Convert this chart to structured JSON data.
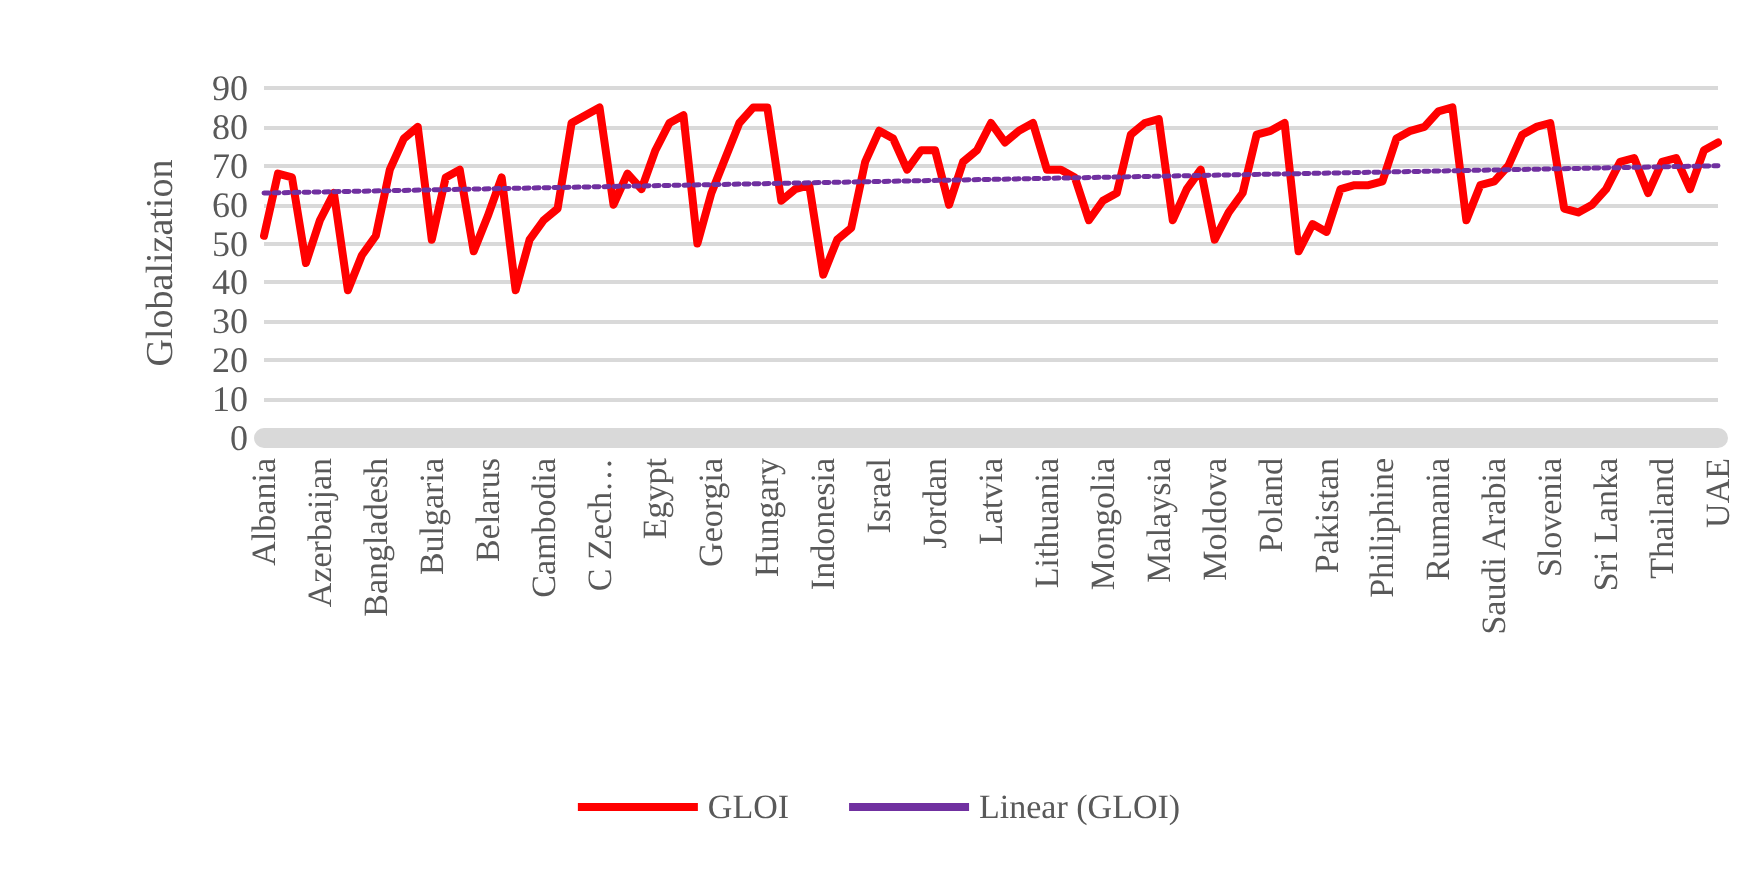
{
  "chart_data": {
    "type": "line",
    "ylabel": "Globalization",
    "categories": [
      "Albania",
      null,
      null,
      null,
      "Azerbaijan",
      null,
      null,
      null,
      "Bangladesh",
      null,
      null,
      null,
      "Bulgaria",
      null,
      null,
      null,
      "Belarus",
      null,
      null,
      null,
      "Cambodia",
      null,
      null,
      null,
      "C Zech…",
      null,
      null,
      null,
      "Egypt",
      null,
      null,
      null,
      "Georgia",
      null,
      null,
      null,
      "Hungary",
      null,
      null,
      null,
      "Indonesia",
      null,
      null,
      null,
      "Israel",
      null,
      null,
      null,
      "Jordan",
      null,
      null,
      null,
      "Latvia",
      null,
      null,
      null,
      "Lithuania",
      null,
      null,
      null,
      "Mongolia",
      null,
      null,
      null,
      "Malaysia",
      null,
      null,
      null,
      "Moldova",
      null,
      null,
      null,
      "Poland",
      null,
      null,
      null,
      "Pakistan",
      null,
      null,
      null,
      "Philiphine",
      null,
      null,
      null,
      "Rumania",
      null,
      null,
      null,
      "Saudi Arabia",
      null,
      null,
      null,
      "Slovenia",
      null,
      null,
      null,
      "Sri Lanka",
      null,
      null,
      null,
      "Thailand",
      null,
      null,
      null,
      "UAE"
    ],
    "series": [
      {
        "name": "GLOI",
        "color": "#ff0000",
        "values": [
          52,
          68,
          67,
          45,
          56,
          63,
          38,
          47,
          52,
          69,
          77,
          80,
          51,
          67,
          69,
          48,
          57,
          67,
          38,
          51,
          56,
          59,
          81,
          83,
          85,
          60,
          68,
          64,
          74,
          81,
          83,
          50,
          63,
          72,
          81,
          85,
          85,
          61,
          64,
          65,
          42,
          51,
          54,
          71,
          79,
          77,
          69,
          74,
          74,
          60,
          71,
          74,
          81,
          76,
          79,
          81,
          69,
          69,
          67,
          56,
          61,
          63,
          78,
          81,
          82,
          56,
          64,
          69,
          51,
          58,
          63,
          78,
          79,
          81,
          48,
          55,
          53,
          64,
          65,
          65,
          66,
          77,
          79,
          80,
          84,
          85,
          56,
          65,
          66,
          70,
          78,
          80,
          81,
          59,
          58,
          60,
          64,
          71,
          72,
          63,
          71,
          72,
          64,
          74,
          76
        ]
      },
      {
        "name": "Linear (GLOI)",
        "type": "line",
        "color": "#7030a0",
        "line_style": "dotted",
        "x": [
          "Albania",
          "UAE"
        ],
        "values": [
          63,
          70
        ]
      }
    ],
    "ylim": [
      0,
      90
    ],
    "yticks": [
      0,
      10,
      20,
      30,
      40,
      50,
      60,
      70,
      80,
      90
    ],
    "grid": "y",
    "legend": "bottom",
    "marker": "none",
    "line_style": "solid"
  }
}
